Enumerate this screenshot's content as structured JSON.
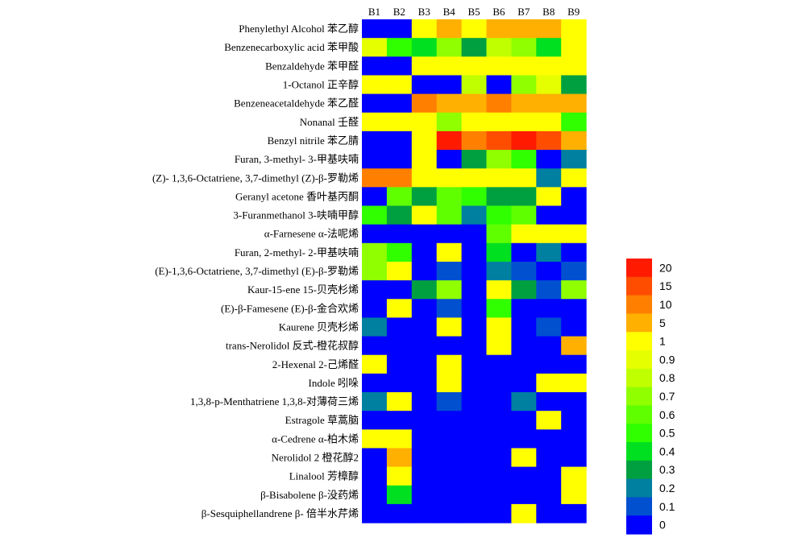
{
  "chart_data": {
    "type": "heatmap",
    "columns": [
      "B1",
      "B2",
      "B3",
      "B4",
      "B5",
      "B6",
      "B7",
      "B8",
      "B9"
    ],
    "rows": [
      "Phenylethyl Alcohol 苯乙醇",
      "Benzenecarboxylic acid 苯甲酸",
      "Benzaldehyde 苯甲醛",
      "1-Octanol 正辛醇",
      "Benzeneacetaldehyde 苯乙醛",
      "Nonanal 壬醛",
      "Benzyl nitrile 苯乙腈",
      "Furan, 3-methyl- 3-甲基呋喃",
      "(Z)- 1,3,6-Octatriene, 3,7-dimethyl  (Z)-β-罗勒烯",
      "Geranyl acetone 香叶基丙酮",
      "3-Furanmethanol 3-呋喃甲醇",
      "α-Farnesene α-法呢烯",
      "Furan, 2-methyl- 2-甲基呋喃",
      "(E)-1,3,6-Octatriene, 3,7-dimethyl  (E)-β-罗勒烯",
      "Kaur-15-ene 15-贝壳杉烯",
      "(E)-β-Famesene (E)-β-金合欢烯",
      "Kaurene 贝壳杉烯",
      "trans-Nerolidol 反式-橙花叔醇",
      "2-Hexenal 2-己烯醛",
      "Indole 吲哚",
      "1,3,8-p-Menthatriene 1,3,8-对薄荷三烯",
      "Estragole 草蒿脑",
      "α-Cedrene α-柏木烯",
      "Nerolidol 2 橙花醇2",
      "Linalool 芳樟醇",
      "β-Bisabolene β-没药烯",
      "β-Sesquiphellandrene β- 倍半水芹烯"
    ],
    "values": [
      [
        0,
        0,
        1,
        5,
        1,
        5,
        5,
        5,
        1
      ],
      [
        0.9,
        0.5,
        0.4,
        0.7,
        0.3,
        0.8,
        0.7,
        0.4,
        1
      ],
      [
        0,
        0,
        1,
        1,
        1,
        1,
        1,
        1,
        1
      ],
      [
        1,
        1,
        0,
        0,
        0.8,
        0,
        0.7,
        0.9,
        0.3
      ],
      [
        0,
        0,
        10,
        5,
        5,
        10,
        5,
        5,
        5
      ],
      [
        1,
        1,
        1,
        0.7,
        1,
        1,
        1,
        1,
        0.5
      ],
      [
        0,
        0,
        1,
        20,
        10,
        15,
        20,
        15,
        5
      ],
      [
        0,
        0,
        1,
        0,
        0.3,
        0.7,
        0.5,
        0,
        0.2
      ],
      [
        10,
        10,
        1,
        1,
        1,
        1,
        1,
        0.2,
        1
      ],
      [
        0,
        0.6,
        0.3,
        0.6,
        0.5,
        0.3,
        0.3,
        1,
        0
      ],
      [
        0.5,
        0.3,
        1,
        0.6,
        0.2,
        0.5,
        0.6,
        0,
        0
      ],
      [
        0,
        0,
        0,
        0,
        0,
        0.6,
        1,
        1,
        1
      ],
      [
        0.7,
        0.5,
        0,
        1,
        0,
        0.4,
        0,
        0.2,
        0
      ],
      [
        0.7,
        1,
        0,
        0.1,
        0,
        0.2,
        0.1,
        0,
        0.1
      ],
      [
        0,
        0,
        0.3,
        0.7,
        0,
        1,
        0.3,
        0.1,
        0.7
      ],
      [
        0,
        1,
        0,
        0.1,
        0,
        0.5,
        0,
        0,
        0
      ],
      [
        0.2,
        0,
        0,
        1,
        0,
        1,
        0,
        0.1,
        0
      ],
      [
        0,
        0,
        0,
        0,
        0,
        1,
        0,
        0,
        5
      ],
      [
        1,
        0,
        0,
        1,
        0,
        0,
        0,
        0,
        0
      ],
      [
        0,
        0,
        0,
        1,
        0,
        0,
        0,
        1,
        1
      ],
      [
        0.2,
        1,
        0,
        0.1,
        0,
        0,
        0.2,
        0,
        0
      ],
      [
        0,
        0,
        0,
        0,
        0,
        0,
        0,
        1,
        0
      ],
      [
        1,
        1,
        0,
        0,
        0,
        0,
        0,
        0,
        0
      ],
      [
        0,
        5,
        0,
        0,
        0,
        0,
        1,
        0,
        0
      ],
      [
        0,
        1,
        0,
        0,
        0,
        0,
        0,
        0,
        1
      ],
      [
        0,
        0.4,
        0,
        0,
        0,
        0,
        0,
        0,
        1
      ],
      [
        0,
        0,
        0,
        0,
        0,
        0,
        1,
        0,
        0
      ]
    ],
    "legend": {
      "ticks": [
        "20",
        "15",
        "10",
        "5",
        "1",
        "0.9",
        "0.8",
        "0.7",
        "0.6",
        "0.5",
        "0.4",
        "0.3",
        "0.2",
        "0.1",
        "0"
      ],
      "tick_values": [
        20,
        15,
        10,
        5,
        1,
        0.9,
        0.8,
        0.7,
        0.6,
        0.5,
        0.4,
        0.3,
        0.2,
        0.1,
        0
      ],
      "colors": [
        "#ff1a00",
        "#ff4d00",
        "#ff8000",
        "#ffb000",
        "#ffff00",
        "#e6ff00",
        "#c0ff00",
        "#90ff00",
        "#60ff00",
        "#30ff00",
        "#00e020",
        "#00a040",
        "#0080a0",
        "#0050d0",
        "#0000ff"
      ],
      "placement": "right"
    },
    "title": "",
    "xlabel": "",
    "ylabel": ""
  }
}
